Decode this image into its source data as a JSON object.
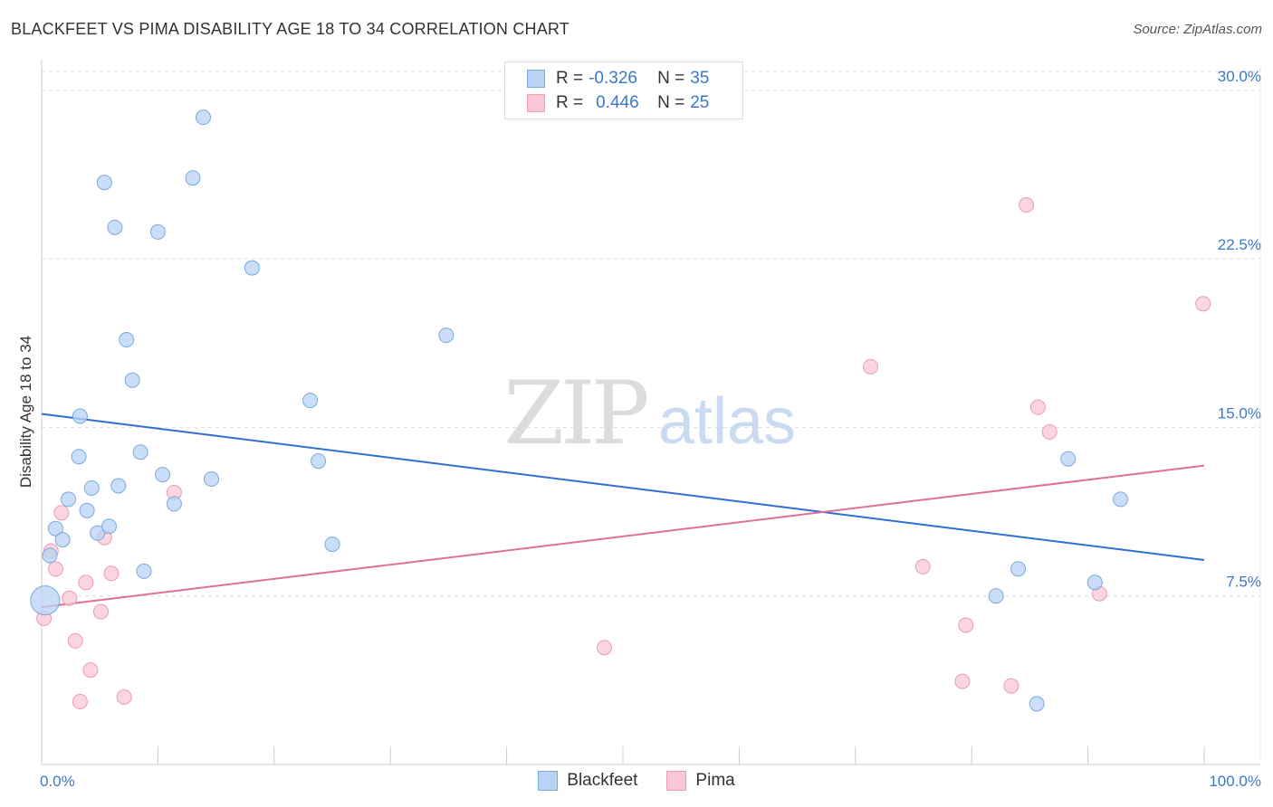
{
  "title": "BLACKFEET VS PIMA DISABILITY AGE 18 TO 34 CORRELATION CHART",
  "source": "Source: ZipAtlas.com",
  "watermark": {
    "zip": "ZIP",
    "atlas": "atlas"
  },
  "legend": {
    "r_label": "R =",
    "n_label": "N =",
    "rows": [
      {
        "r": "-0.326",
        "n": "35",
        "color": "#a9c8f0"
      },
      {
        "r": "0.446",
        "n": "25",
        "color": "#f6b8cb"
      }
    ]
  },
  "colors": {
    "blackfeet_fill": "#b8d3f4",
    "blackfeet_stroke": "#7aaae0",
    "blackfeet_line": "#2f6fcf",
    "pima_fill": "#f9c7d6",
    "pima_stroke": "#ee9ab4",
    "pima_line": "#e0709a",
    "tick_label": "#3b78c9",
    "grid": "#dcdcdc"
  },
  "chart_data": {
    "type": "scatter",
    "title": "BLACKFEET VS PIMA DISABILITY AGE 18 TO 34 CORRELATION CHART",
    "xlabel": "",
    "ylabel": "Disability Age 18 to 34",
    "xlim": [
      0,
      100
    ],
    "ylim": [
      0,
      31
    ],
    "x_tick_labels": [
      "0.0%",
      "100.0%"
    ],
    "y_ticks": [
      7.5,
      15.0,
      22.5,
      30.0
    ],
    "y_tick_labels": [
      "7.5%",
      "15.0%",
      "22.5%",
      "30.0%"
    ],
    "grid": true,
    "legend_position": "bottom-center",
    "series": [
      {
        "name": "Blackfeet",
        "points": [
          [
            0.3,
            7.3
          ],
          [
            0.7,
            9.3
          ],
          [
            1.2,
            10.5
          ],
          [
            1.8,
            10.0
          ],
          [
            2.3,
            11.8
          ],
          [
            3.2,
            13.7
          ],
          [
            3.3,
            15.5
          ],
          [
            3.9,
            11.3
          ],
          [
            4.3,
            12.3
          ],
          [
            4.8,
            10.3
          ],
          [
            5.4,
            25.9
          ],
          [
            5.8,
            10.6
          ],
          [
            6.3,
            23.9
          ],
          [
            6.6,
            12.4
          ],
          [
            7.3,
            18.9
          ],
          [
            7.8,
            17.1
          ],
          [
            8.5,
            13.9
          ],
          [
            8.8,
            8.6
          ],
          [
            10.0,
            23.7
          ],
          [
            10.4,
            12.9
          ],
          [
            11.4,
            11.6
          ],
          [
            13.0,
            26.1
          ],
          [
            13.9,
            28.8
          ],
          [
            14.6,
            12.7
          ],
          [
            18.1,
            22.1
          ],
          [
            23.1,
            16.2
          ],
          [
            23.8,
            13.5
          ],
          [
            25.0,
            9.8
          ],
          [
            34.8,
            19.1
          ],
          [
            82.1,
            7.5
          ],
          [
            84.0,
            8.7
          ],
          [
            85.6,
            2.7
          ],
          [
            88.3,
            13.6
          ],
          [
            90.6,
            8.1
          ],
          [
            92.8,
            11.8
          ]
        ]
      },
      {
        "name": "Pima",
        "points": [
          [
            0.2,
            6.5
          ],
          [
            0.8,
            9.5
          ],
          [
            1.2,
            8.7
          ],
          [
            1.7,
            11.2
          ],
          [
            2.4,
            7.4
          ],
          [
            2.9,
            5.5
          ],
          [
            3.3,
            2.8
          ],
          [
            3.8,
            8.1
          ],
          [
            4.2,
            4.2
          ],
          [
            5.1,
            6.8
          ],
          [
            5.4,
            10.1
          ],
          [
            6.0,
            8.5
          ],
          [
            7.1,
            3.0
          ],
          [
            11.4,
            12.1
          ],
          [
            48.4,
            5.2
          ],
          [
            71.3,
            17.7
          ],
          [
            75.8,
            8.8
          ],
          [
            79.5,
            6.2
          ],
          [
            79.2,
            3.7
          ],
          [
            84.7,
            24.9
          ],
          [
            83.4,
            3.5
          ],
          [
            85.7,
            15.9
          ],
          [
            86.7,
            14.8
          ],
          [
            91.0,
            7.6
          ],
          [
            99.9,
            20.5
          ]
        ]
      }
    ],
    "trendlines": [
      {
        "series": "Blackfeet",
        "from": [
          0,
          15.6
        ],
        "to": [
          100,
          9.1
        ]
      },
      {
        "series": "Pima",
        "from": [
          0,
          7.0
        ],
        "to": [
          100,
          13.3
        ]
      }
    ]
  }
}
